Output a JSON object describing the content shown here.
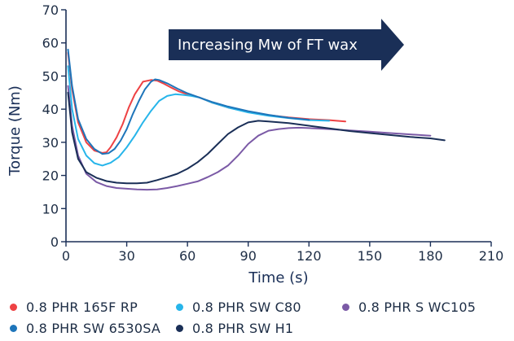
{
  "chart_data": {
    "type": "line",
    "title": "",
    "xlabel": "Time (s)",
    "ylabel": "Torque (Nm)",
    "xlim": [
      0,
      210
    ],
    "ylim": [
      0,
      70
    ],
    "xticks": [
      0,
      30,
      60,
      90,
      120,
      150,
      180,
      210
    ],
    "yticks": [
      0,
      10,
      20,
      30,
      40,
      50,
      60,
      70
    ],
    "grid": false,
    "legend_position": "bottom",
    "annotation": {
      "text": "Increasing Mw of FT wax",
      "style": "arrow",
      "color": "#1a2f57",
      "text_color": "#ffffff"
    },
    "series": [
      {
        "name": "0.8 PHR 165F RP",
        "color": "#ee4244",
        "x": [
          1,
          3,
          6,
          10,
          14,
          18,
          20,
          22,
          25,
          28,
          31,
          34,
          38,
          42,
          45,
          48,
          52,
          56,
          60,
          66,
          72,
          80,
          90,
          100,
          110,
          120,
          130,
          138
        ],
        "y": [
          57,
          46,
          36,
          30,
          27.5,
          26.8,
          27,
          28.5,
          31.5,
          35.5,
          40.5,
          44.5,
          48.3,
          48.8,
          48.6,
          47.8,
          46.5,
          45.3,
          44.5,
          43.5,
          42,
          40.5,
          39.2,
          38.2,
          37.5,
          37,
          36.7,
          36.3
        ]
      },
      {
        "name": "0.8 PHR SW C80",
        "color": "#27b5ea",
        "x": [
          1,
          3,
          6,
          10,
          14,
          18,
          22,
          26,
          30,
          34,
          38,
          42,
          46,
          50,
          54,
          58,
          62,
          66,
          72,
          80,
          90,
          100,
          110,
          120,
          130
        ],
        "y": [
          53,
          40,
          31,
          26,
          23.7,
          23,
          23.8,
          25.5,
          28.5,
          32,
          36,
          39.5,
          42.5,
          44,
          44.5,
          44.3,
          44,
          43.5,
          42,
          40.5,
          39,
          38,
          37.3,
          36.7,
          36.5
        ]
      },
      {
        "name": "0.8 PHR S WC105",
        "color": "#7b5aa6",
        "x": [
          1,
          3,
          6,
          10,
          15,
          20,
          25,
          30,
          35,
          40,
          45,
          50,
          55,
          60,
          65,
          70,
          75,
          80,
          85,
          90,
          95,
          100,
          105,
          110,
          115,
          120,
          130,
          140,
          150,
          160,
          170,
          180
        ],
        "y": [
          47,
          35,
          26,
          20.5,
          18,
          16.8,
          16.2,
          16,
          15.8,
          15.7,
          15.8,
          16.2,
          16.8,
          17.5,
          18.2,
          19.5,
          21,
          23,
          26,
          29.5,
          32,
          33.5,
          34,
          34.3,
          34.4,
          34.3,
          34,
          33.6,
          33.2,
          32.8,
          32.4,
          32
        ]
      },
      {
        "name": "0.8 PHR SW 6530SA",
        "color": "#1e75ba",
        "x": [
          1,
          3,
          6,
          10,
          14,
          18,
          21,
          24,
          27,
          30,
          33,
          36,
          39,
          42,
          44,
          46,
          50,
          55,
          60,
          66,
          72,
          80,
          90,
          100,
          110,
          120
        ],
        "y": [
          58,
          47,
          37,
          31,
          28,
          26.5,
          26.7,
          28,
          30.5,
          34,
          38.5,
          42.5,
          46,
          48.3,
          49,
          48.8,
          47.8,
          46.2,
          44.8,
          43.5,
          42.2,
          40.8,
          39.4,
          38.3,
          37.4,
          36.8
        ]
      },
      {
        "name": "0.8 PHR SW H1",
        "color": "#1a2f57",
        "x": [
          1,
          3,
          6,
          10,
          15,
          20,
          25,
          30,
          35,
          40,
          45,
          50,
          55,
          60,
          65,
          70,
          75,
          80,
          85,
          90,
          95,
          100,
          110,
          120,
          130,
          140,
          150,
          160,
          170,
          180,
          187
        ],
        "y": [
          45,
          33,
          25,
          21,
          19.3,
          18.3,
          17.8,
          17.6,
          17.6,
          17.8,
          18.6,
          19.5,
          20.5,
          22,
          24,
          26.5,
          29.5,
          32.5,
          34.5,
          36,
          36.5,
          36.3,
          35.8,
          35,
          34.2,
          33.4,
          32.8,
          32.2,
          31.6,
          31.2,
          30.6
        ]
      }
    ]
  }
}
